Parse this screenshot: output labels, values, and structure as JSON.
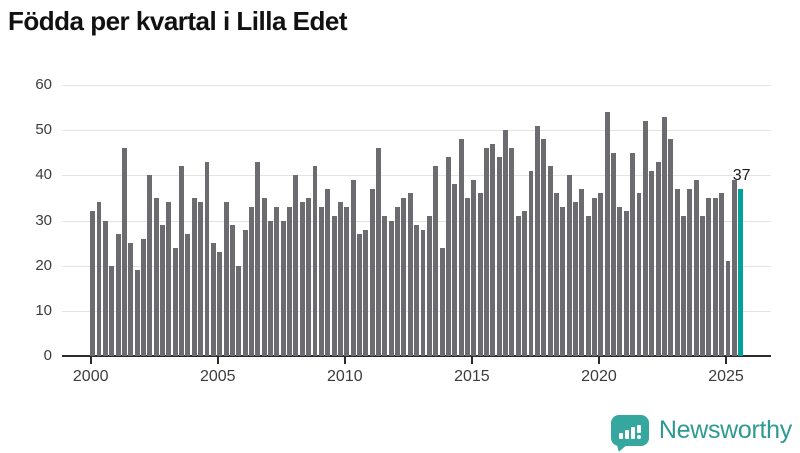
{
  "title": "Födda per kvartal i Lilla Edet",
  "chart_data": {
    "type": "bar",
    "title": "Födda per kvartal i Lilla Edet",
    "x_start": "2000-Q1",
    "x_end": "2025-Q3",
    "values": [
      32,
      34,
      30,
      20,
      27,
      46,
      25,
      19,
      26,
      40,
      35,
      29,
      34,
      24,
      42,
      27,
      35,
      34,
      43,
      25,
      23,
      34,
      29,
      20,
      28,
      33,
      43,
      35,
      30,
      33,
      30,
      33,
      40,
      34,
      35,
      42,
      33,
      37,
      31,
      34,
      33,
      39,
      27,
      28,
      37,
      46,
      31,
      30,
      33,
      35,
      36,
      29,
      28,
      31,
      42,
      24,
      44,
      38,
      48,
      35,
      39,
      36,
      46,
      47,
      44,
      50,
      46,
      31,
      32,
      41,
      51,
      48,
      42,
      36,
      33,
      40,
      34,
      37,
      31,
      35,
      36,
      54,
      45,
      33,
      32,
      45,
      36,
      52,
      41,
      43,
      53,
      48,
      37,
      31,
      37,
      39,
      31,
      35,
      35,
      36,
      21,
      39,
      37
    ],
    "highlight_last": true,
    "value_label": "37",
    "yticks": [
      0,
      10,
      20,
      30,
      40,
      50,
      60
    ],
    "ytick_labels": [
      "0",
      "10",
      "20",
      "30",
      "40",
      "50",
      "60"
    ],
    "xticks": [
      2000,
      2005,
      2010,
      2015,
      2020,
      2025
    ],
    "xtick_labels": [
      "2000",
      "2005",
      "2010",
      "2015",
      "2020",
      "2025"
    ],
    "ylim": [
      0,
      60
    ],
    "grid": "horizontal",
    "bar_color": "#6b6b70",
    "highlight_color": "#00a19a",
    "grid_color": "#e3e3e3",
    "axis_color": "#2b2b2b"
  },
  "branding": {
    "logo_text": "Newsworthy",
    "logo_icon": "bar-chart-speech-bubble-icon",
    "logo_color": "#35a79e",
    "logo_text_color": "#2f9a92"
  }
}
